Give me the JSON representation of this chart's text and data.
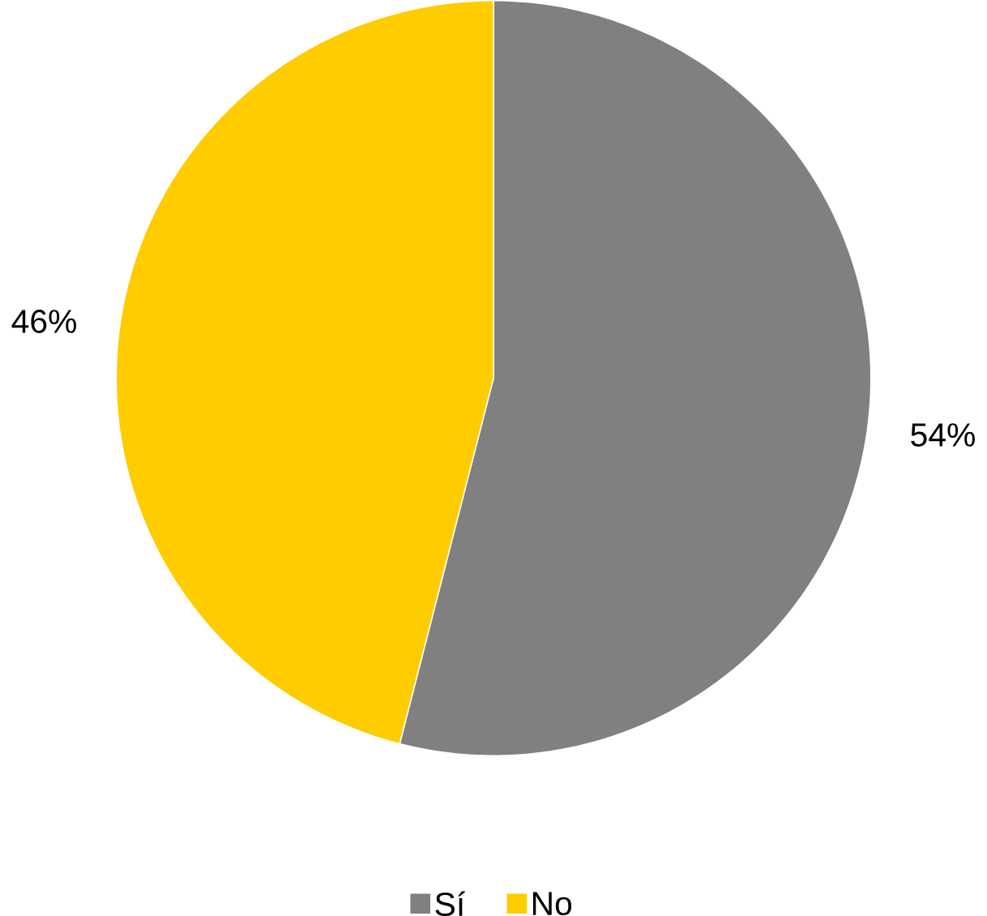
{
  "chart_data": {
    "type": "pie",
    "categories": [
      "Sí",
      "No"
    ],
    "values": [
      54,
      46
    ],
    "colors": [
      "#808080",
      "#ffcc00"
    ],
    "value_labels": [
      "54%",
      "46%"
    ],
    "legend": "bottom"
  }
}
